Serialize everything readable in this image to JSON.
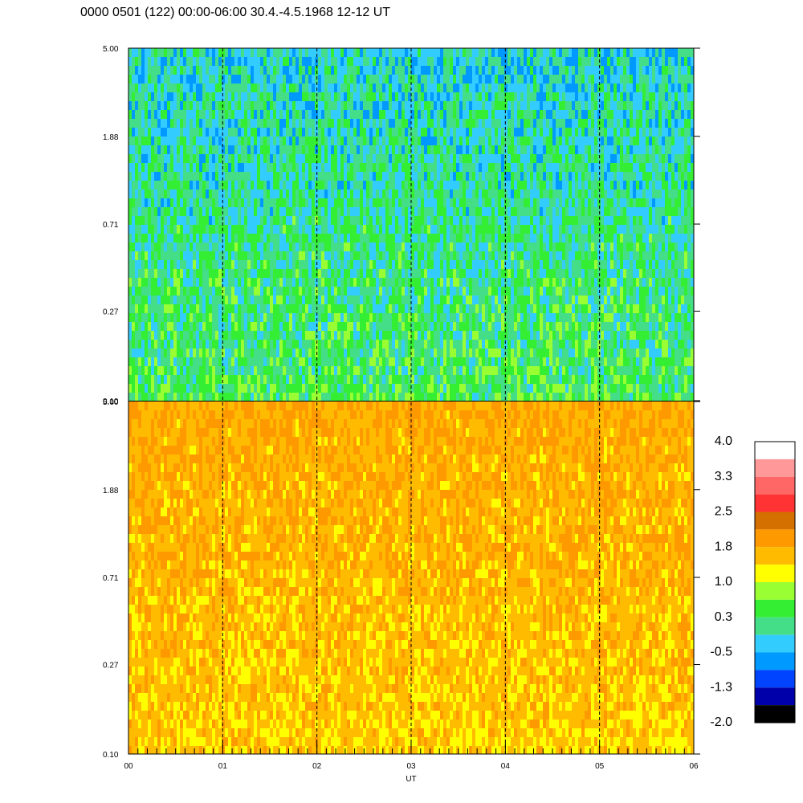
{
  "chart_data": {
    "type": "heatmap",
    "title": "0000 0501 (122) 00:00-06:00 30.4.-4.5.1968  12-12 UT",
    "xlabel": "UT",
    "x_ticks": [
      "00",
      "01",
      "02",
      "03",
      "04",
      "05",
      "06"
    ],
    "x_range": [
      0,
      6
    ],
    "dashed_gridlines_at": [
      1,
      2,
      3,
      4,
      5
    ],
    "panels": [
      {
        "name": "",
        "y_scale": "log",
        "y_range": [
          0.1,
          5.0
        ],
        "y_ticks": [
          "0.10",
          "0.27",
          "0.71",
          "1.88",
          "5.00"
        ],
        "dominant_level_range": [
          -1.3,
          1.0
        ]
      },
      {
        "name": "",
        "y_scale": "log",
        "y_range": [
          0.1,
          5.0
        ],
        "y_ticks": [
          "0.10",
          "0.27",
          "0.71",
          "1.88",
          "5.00"
        ],
        "dominant_level_range": [
          0.7,
          2.2
        ]
      }
    ],
    "colorbar": {
      "labels": [
        "4.0",
        "3.3",
        "2.5",
        "1.8",
        "1.0",
        "0.3",
        "-0.5",
        "-1.3",
        "-2.0"
      ],
      "range": [
        -2.0,
        4.0
      ],
      "colors": [
        "#ffffff",
        "#ff9999",
        "#ff6666",
        "#ff3333",
        "#d47000",
        "#ff9900",
        "#ffbb00",
        "#ffff00",
        "#99ff33",
        "#33ee33",
        "#44dd88",
        "#33ccff",
        "#0099ff",
        "#0044ff",
        "#0000aa",
        "#000000"
      ]
    }
  }
}
